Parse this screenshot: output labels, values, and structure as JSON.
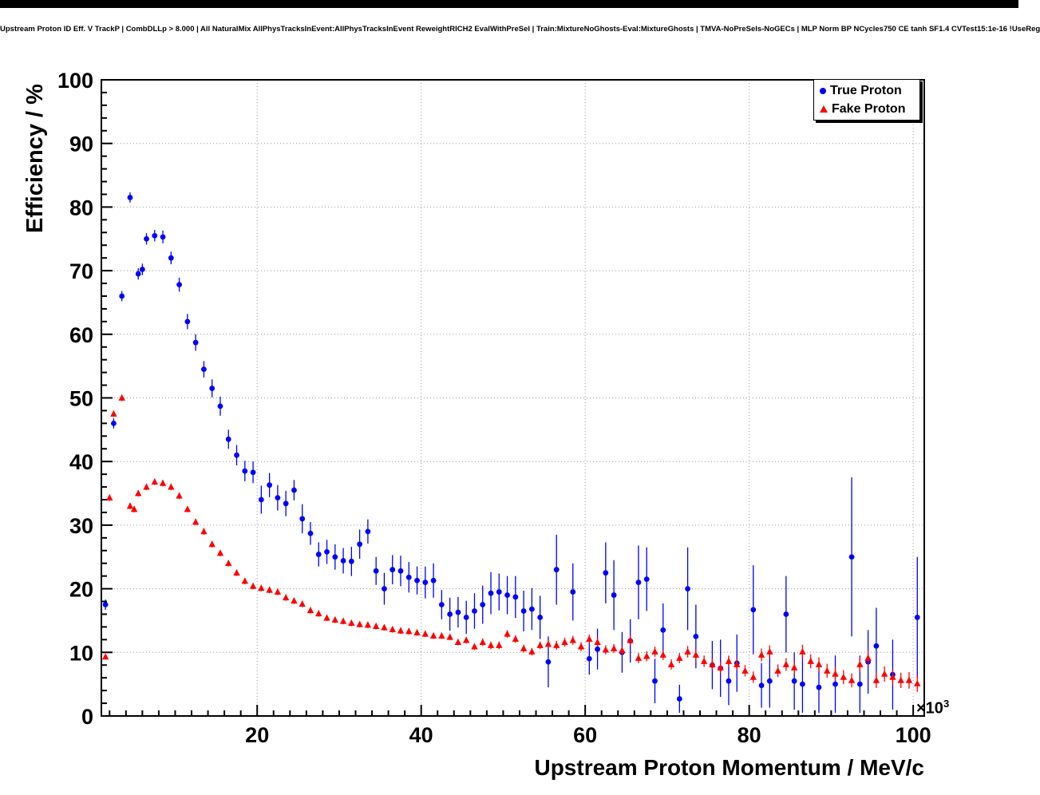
{
  "title": "Upstream Proton ID Eff. V TrackP | CombDLLp > 8.000 | All NaturalMix AllPhysTracksInEvent:AllPhysTracksInEvent ReweightRICH2 EvalWithPreSel | Train:MixtureNoGhosts-Eval:MixtureGhosts | TMVA-NoPreSels-NoGECs | MLP Norm BP NCycles750 CE tanh SF1.4 CVTest15:1e-16 !UseReg",
  "axes": {
    "x_label": "Upstream Proton Momentum / MeV/c",
    "y_label": "Efficiency / %",
    "x_exponent_base": "×10",
    "x_exponent_power": "3"
  },
  "legend": {
    "entries": [
      {
        "label": "True Proton",
        "marker": "circle",
        "color": "#0000ff"
      },
      {
        "label": "Fake Proton",
        "marker": "triangle-up",
        "color": "#ff0000"
      }
    ]
  },
  "chart_data": {
    "type": "scatter",
    "title": "Upstream Proton ID Eff. V TrackP | CombDLLp > 8.000 | All NaturalMix AllPhysTracksInEvent:AllPhysTracksInEvent ReweightRICH2 EvalWithPreSel | Train:MixtureNoGhosts-Eval:MixtureGhosts | TMVA-NoPreSels-NoGECs | MLP Norm BP NCycles750 CE tanh SF1.4 CVTest15:1e-16 !UseReg",
    "xlabel": "Upstream Proton Momentum / MeV/c",
    "ylabel": "Efficiency / %",
    "x_units_multiplier": "×10^3",
    "x_range": [
      1,
      101.35
    ],
    "y_range": [
      0,
      100
    ],
    "x_major_ticks": [
      20,
      40,
      60,
      80,
      100
    ],
    "y_major_ticks": [
      0,
      10,
      20,
      30,
      40,
      50,
      60,
      70,
      80,
      90,
      100
    ],
    "minor_tick_step": 2,
    "grid": true,
    "legend_position": "top-right",
    "series": [
      {
        "name": "True Proton",
        "marker": "circle",
        "color": "#0000ff",
        "points_format": [
          "x_times_1000_MeV",
          "efficiency_pct",
          "error_pct"
        ],
        "points": [
          [
            1.5,
            17.5,
            0.8
          ],
          [
            2.5,
            46.0,
            0.8
          ],
          [
            3.5,
            66.0,
            0.8
          ],
          [
            4.5,
            81.5,
            0.8
          ],
          [
            5.5,
            69.5,
            0.9
          ],
          [
            6.0,
            70.2,
            0.9
          ],
          [
            6.5,
            75.0,
            0.9
          ],
          [
            7.5,
            75.5,
            0.9
          ],
          [
            8.5,
            75.3,
            1.0
          ],
          [
            9.5,
            72.0,
            1.0
          ],
          [
            10.5,
            67.8,
            1.1
          ],
          [
            11.5,
            62.0,
            1.2
          ],
          [
            12.5,
            58.7,
            1.3
          ],
          [
            13.5,
            54.5,
            1.3
          ],
          [
            14.5,
            51.5,
            1.4
          ],
          [
            15.5,
            48.7,
            1.5
          ],
          [
            16.5,
            43.5,
            1.5
          ],
          [
            17.5,
            41.0,
            1.6
          ],
          [
            18.5,
            38.5,
            1.6
          ],
          [
            19.5,
            38.3,
            1.7
          ],
          [
            20.5,
            34.0,
            2.2
          ],
          [
            21.5,
            36.3,
            1.9
          ],
          [
            22.5,
            34.3,
            2.0
          ],
          [
            23.5,
            33.4,
            2.0
          ],
          [
            24.5,
            35.5,
            1.6
          ],
          [
            25.5,
            31.0,
            2.3
          ],
          [
            26.5,
            28.7,
            1.8
          ],
          [
            27.5,
            25.4,
            1.9
          ],
          [
            28.5,
            25.8,
            1.9
          ],
          [
            29.5,
            25.0,
            2.0
          ],
          [
            30.5,
            24.4,
            2.0
          ],
          [
            31.5,
            24.3,
            2.3
          ],
          [
            32.5,
            27.0,
            2.3
          ],
          [
            33.5,
            29.0,
            1.9
          ],
          [
            34.5,
            22.8,
            2.2
          ],
          [
            35.5,
            20.0,
            2.5
          ],
          [
            36.5,
            23.0,
            2.3
          ],
          [
            37.5,
            22.8,
            2.4
          ],
          [
            38.5,
            21.8,
            2.4
          ],
          [
            39.5,
            21.3,
            2.2
          ],
          [
            40.5,
            21.0,
            2.5
          ],
          [
            41.5,
            21.3,
            2.7
          ],
          [
            42.5,
            17.5,
            2.3
          ],
          [
            43.5,
            16.0,
            2.6
          ],
          [
            44.5,
            16.3,
            2.4
          ],
          [
            45.5,
            15.5,
            2.6
          ],
          [
            46.5,
            16.5,
            2.8
          ],
          [
            47.5,
            17.5,
            3.0
          ],
          [
            48.5,
            19.3,
            3.3
          ],
          [
            49.5,
            19.5,
            2.9
          ],
          [
            50.5,
            19.0,
            3.0
          ],
          [
            51.5,
            18.7,
            3.3
          ],
          [
            52.5,
            16.5,
            3.2
          ],
          [
            53.5,
            16.8,
            3.3
          ],
          [
            54.5,
            15.5,
            3.4
          ],
          [
            55.5,
            8.5,
            4.0
          ],
          [
            56.5,
            23.0,
            5.5
          ],
          [
            58.5,
            19.5,
            4.5
          ],
          [
            60.5,
            9.0,
            2.5
          ],
          [
            61.5,
            10.5,
            3.2
          ],
          [
            62.5,
            22.5,
            4.8
          ],
          [
            63.5,
            19.0,
            5.5
          ],
          [
            64.5,
            10.0,
            3.2
          ],
          [
            65.5,
            11.8,
            3.4
          ],
          [
            66.5,
            21.0,
            5.8
          ],
          [
            67.5,
            21.5,
            5.0
          ],
          [
            68.5,
            5.5,
            3.5
          ],
          [
            69.5,
            13.5,
            4.2
          ],
          [
            71.5,
            2.7,
            2.2
          ],
          [
            72.5,
            20.0,
            6.5
          ],
          [
            73.5,
            12.5,
            5.0
          ],
          [
            75.5,
            8.0,
            3.8
          ],
          [
            76.5,
            7.5,
            4.5
          ],
          [
            77.5,
            5.5,
            3.8
          ],
          [
            78.5,
            8.3,
            4.5
          ],
          [
            80.5,
            16.7,
            7.0
          ],
          [
            81.5,
            4.8,
            3.5
          ],
          [
            82.5,
            5.5,
            4.2
          ],
          [
            84.5,
            16.0,
            6.0
          ],
          [
            85.5,
            5.5,
            4.5
          ],
          [
            86.5,
            5.0,
            4.5
          ],
          [
            88.5,
            4.5,
            4.0
          ],
          [
            90.5,
            5.0,
            4.5
          ],
          [
            92.5,
            25.0,
            12.5
          ],
          [
            93.5,
            5.0,
            4.5
          ],
          [
            94.5,
            8.5,
            5.0
          ],
          [
            95.5,
            11.0,
            6.0
          ],
          [
            97.5,
            6.5,
            5.5
          ],
          [
            100.5,
            15.5,
            9.5
          ]
        ]
      },
      {
        "name": "Fake Proton",
        "marker": "triangle-up",
        "color": "#ff0000",
        "points_format": [
          "x_times_1000_MeV",
          "efficiency_pct",
          "error_pct"
        ],
        "points": [
          [
            1.5,
            9.3,
            0.4
          ],
          [
            2.0,
            34.3,
            0.5
          ],
          [
            2.5,
            47.5,
            0.5
          ],
          [
            3.5,
            50.0,
            0.5
          ],
          [
            4.5,
            33.0,
            0.5
          ],
          [
            5.0,
            32.5,
            0.5
          ],
          [
            5.5,
            35.0,
            0.5
          ],
          [
            6.5,
            36.0,
            0.5
          ],
          [
            7.5,
            36.8,
            0.5
          ],
          [
            8.5,
            36.6,
            0.5
          ],
          [
            9.5,
            36.0,
            0.5
          ],
          [
            10.5,
            34.6,
            0.5
          ],
          [
            11.5,
            32.5,
            0.5
          ],
          [
            12.5,
            30.5,
            0.5
          ],
          [
            13.5,
            29.0,
            0.5
          ],
          [
            14.5,
            27.0,
            0.5
          ],
          [
            15.5,
            25.6,
            0.5
          ],
          [
            16.5,
            24.0,
            0.5
          ],
          [
            17.5,
            22.5,
            0.5
          ],
          [
            18.5,
            21.2,
            0.5
          ],
          [
            19.5,
            20.4,
            0.5
          ],
          [
            20.5,
            20.1,
            0.5
          ],
          [
            21.5,
            19.8,
            0.5
          ],
          [
            22.5,
            19.5,
            0.5
          ],
          [
            23.5,
            18.6,
            0.5
          ],
          [
            24.5,
            18.1,
            0.5
          ],
          [
            25.5,
            17.6,
            0.5
          ],
          [
            26.5,
            16.6,
            0.5
          ],
          [
            27.5,
            16.1,
            0.5
          ],
          [
            28.5,
            15.4,
            0.5
          ],
          [
            29.5,
            15.1,
            0.5
          ],
          [
            30.5,
            14.9,
            0.5
          ],
          [
            31.5,
            14.6,
            0.5
          ],
          [
            32.5,
            14.4,
            0.5
          ],
          [
            33.5,
            14.3,
            0.5
          ],
          [
            34.5,
            14.1,
            0.5
          ],
          [
            35.5,
            13.9,
            0.5
          ],
          [
            36.5,
            13.6,
            0.5
          ],
          [
            37.5,
            13.4,
            0.5
          ],
          [
            38.5,
            13.3,
            0.5
          ],
          [
            39.5,
            13.1,
            0.5
          ],
          [
            40.5,
            12.9,
            0.5
          ],
          [
            41.5,
            12.6,
            0.5
          ],
          [
            42.5,
            12.6,
            0.5
          ],
          [
            43.5,
            12.4,
            0.5
          ],
          [
            44.5,
            11.6,
            0.5
          ],
          [
            45.5,
            11.9,
            0.5
          ],
          [
            46.5,
            10.9,
            0.5
          ],
          [
            47.5,
            11.6,
            0.6
          ],
          [
            48.5,
            11.1,
            0.6
          ],
          [
            49.5,
            11.1,
            0.6
          ],
          [
            50.5,
            12.9,
            0.6
          ],
          [
            51.5,
            12.1,
            0.6
          ],
          [
            52.5,
            10.6,
            0.6
          ],
          [
            53.5,
            10.1,
            0.6
          ],
          [
            54.5,
            11.1,
            0.6
          ],
          [
            55.5,
            11.3,
            0.6
          ],
          [
            56.5,
            11.1,
            0.7
          ],
          [
            57.5,
            11.6,
            0.7
          ],
          [
            58.5,
            11.9,
            0.7
          ],
          [
            59.5,
            10.9,
            0.7
          ],
          [
            60.5,
            12.1,
            0.7
          ],
          [
            61.5,
            11.6,
            0.7
          ],
          [
            62.5,
            10.4,
            0.7
          ],
          [
            63.5,
            10.6,
            0.7
          ],
          [
            64.5,
            10.3,
            0.7
          ],
          [
            65.5,
            11.9,
            0.8
          ],
          [
            66.5,
            9.1,
            0.8
          ],
          [
            67.5,
            9.4,
            0.8
          ],
          [
            68.5,
            10.1,
            0.8
          ],
          [
            69.5,
            9.6,
            0.8
          ],
          [
            70.5,
            8.1,
            0.8
          ],
          [
            71.5,
            9.1,
            0.8
          ],
          [
            72.5,
            10.1,
            0.9
          ],
          [
            73.5,
            9.6,
            0.9
          ],
          [
            74.5,
            8.6,
            0.9
          ],
          [
            75.5,
            8.1,
            0.9
          ],
          [
            76.5,
            7.6,
            0.9
          ],
          [
            77.5,
            8.6,
            0.9
          ],
          [
            78.5,
            8.1,
            0.9
          ],
          [
            79.5,
            7.1,
            0.9
          ],
          [
            80.5,
            6.1,
            0.9
          ],
          [
            81.5,
            9.6,
            1.0
          ],
          [
            82.5,
            10.1,
            1.0
          ],
          [
            83.5,
            7.1,
            1.0
          ],
          [
            84.5,
            8.1,
            1.0
          ],
          [
            85.5,
            7.6,
            1.0
          ],
          [
            86.5,
            10.1,
            1.1
          ],
          [
            87.5,
            8.6,
            1.1
          ],
          [
            88.5,
            8.1,
            1.1
          ],
          [
            89.5,
            7.1,
            1.1
          ],
          [
            90.5,
            6.6,
            1.1
          ],
          [
            91.5,
            6.1,
            1.1
          ],
          [
            92.5,
            5.6,
            1.1
          ],
          [
            93.5,
            8.1,
            1.2
          ],
          [
            94.5,
            9.1,
            1.2
          ],
          [
            95.5,
            5.6,
            1.2
          ],
          [
            96.5,
            6.6,
            1.2
          ],
          [
            97.5,
            6.1,
            1.2
          ],
          [
            98.5,
            5.6,
            1.2
          ],
          [
            99.5,
            5.6,
            1.3
          ],
          [
            100.5,
            5.1,
            1.3
          ]
        ]
      }
    ]
  }
}
